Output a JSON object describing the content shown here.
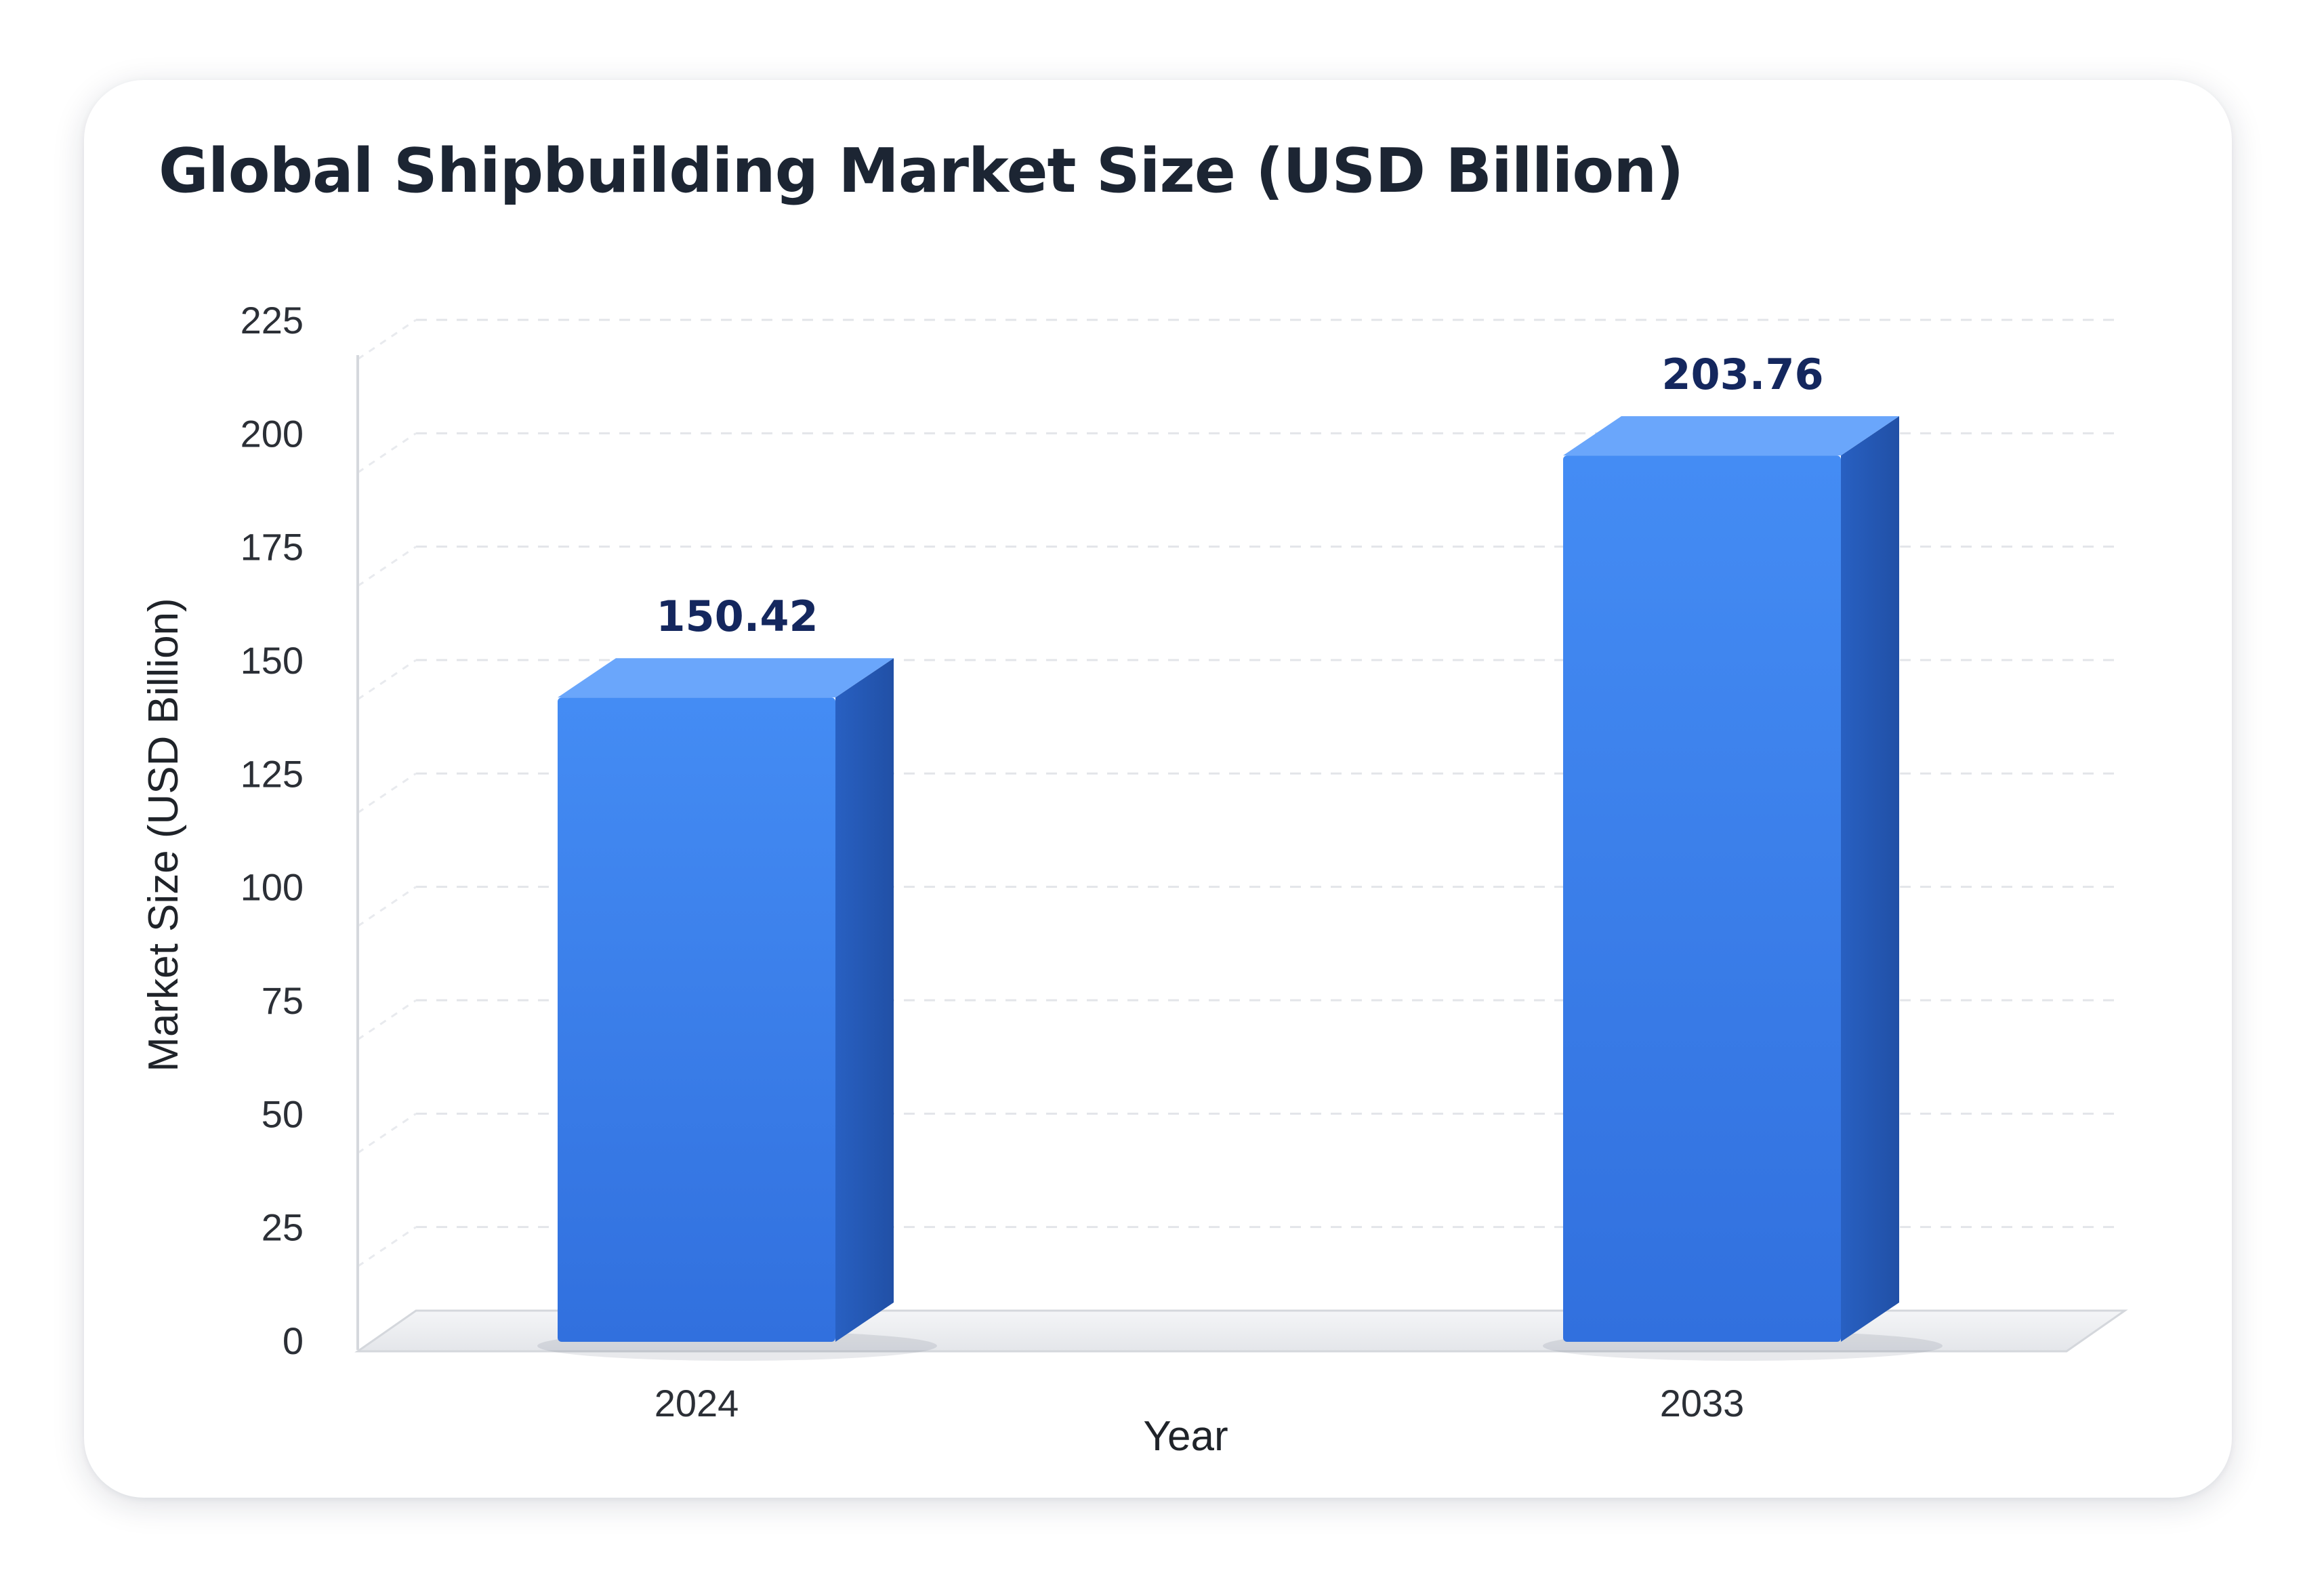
{
  "chart_data": {
    "type": "bar",
    "title": "Global Shipbuilding Market Size (USD Billion)",
    "xlabel": "Year",
    "ylabel": "Market Size (USD Billion)",
    "categories": [
      "2024",
      "2033"
    ],
    "values": [
      150.42,
      203.76
    ],
    "value_labels": [
      "150.42",
      "203.76"
    ],
    "ylim": [
      0,
      225
    ],
    "yticks": [
      0,
      25,
      50,
      75,
      100,
      125,
      150,
      175,
      200,
      225
    ],
    "grid": true,
    "legend": "none",
    "colors": {
      "bar_front": "#3b82ee",
      "bar_side": "#2458b4",
      "bar_top": "#6aa6fb",
      "value_label": "#14275e"
    }
  }
}
